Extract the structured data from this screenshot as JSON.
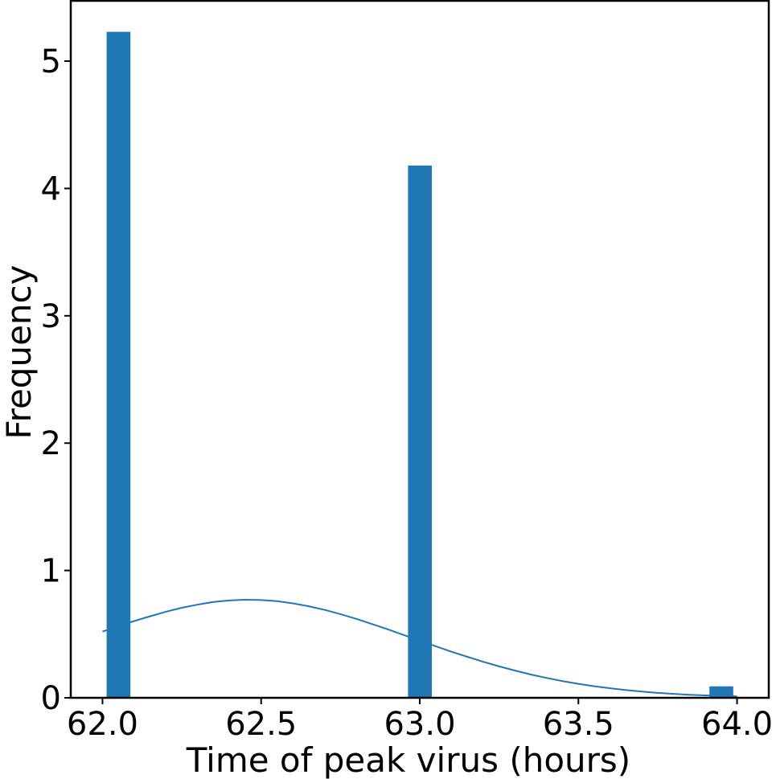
{
  "chart_data": {
    "type": "bar",
    "xlabel": "Time of peak virus (hours)",
    "ylabel": "Frequency",
    "xlim": [
      61.9,
      64.1
    ],
    "ylim": [
      0,
      5.48
    ],
    "x_ticks": [
      62.0,
      62.5,
      63.0,
      63.5,
      64.0
    ],
    "x_tick_labels": [
      "62.0",
      "62.5",
      "63.0",
      "63.5",
      "64.0"
    ],
    "y_ticks": [
      0,
      1,
      2,
      3,
      4,
      5
    ],
    "y_tick_labels": [
      "0",
      "1",
      "2",
      "3",
      "4",
      "5"
    ],
    "bar_color": "#1f77b4",
    "bars": [
      {
        "x_start": 62.013,
        "x_end": 62.088,
        "value": 5.23
      },
      {
        "x_start": 62.963,
        "x_end": 63.038,
        "value": 4.18
      },
      {
        "x_start": 63.913,
        "x_end": 63.988,
        "value": 0.09
      }
    ],
    "curve": {
      "type": "line",
      "color": "#1f77b4",
      "x": [
        62.0,
        62.05,
        62.1,
        62.15,
        62.2,
        62.25,
        62.3,
        62.35,
        62.4,
        62.45,
        62.5,
        62.55,
        62.6,
        62.65,
        62.7,
        62.75,
        62.8,
        62.85,
        62.9,
        62.95,
        63.0,
        63.05,
        63.1,
        63.15,
        63.2,
        63.25,
        63.3,
        63.35,
        63.4,
        63.45,
        63.5,
        63.55,
        63.6,
        63.65,
        63.7,
        63.75,
        63.8,
        63.85,
        63.9,
        63.95,
        64.0
      ],
      "y": [
        0.52,
        0.563,
        0.603,
        0.64,
        0.676,
        0.707,
        0.732,
        0.753,
        0.765,
        0.77,
        0.768,
        0.759,
        0.742,
        0.719,
        0.691,
        0.657,
        0.62,
        0.579,
        0.537,
        0.493,
        0.449,
        0.405,
        0.362,
        0.322,
        0.283,
        0.247,
        0.214,
        0.183,
        0.156,
        0.131,
        0.11,
        0.091,
        0.075,
        0.061,
        0.049,
        0.039,
        0.031,
        0.024,
        0.019,
        0.015,
        0.011
      ]
    }
  }
}
